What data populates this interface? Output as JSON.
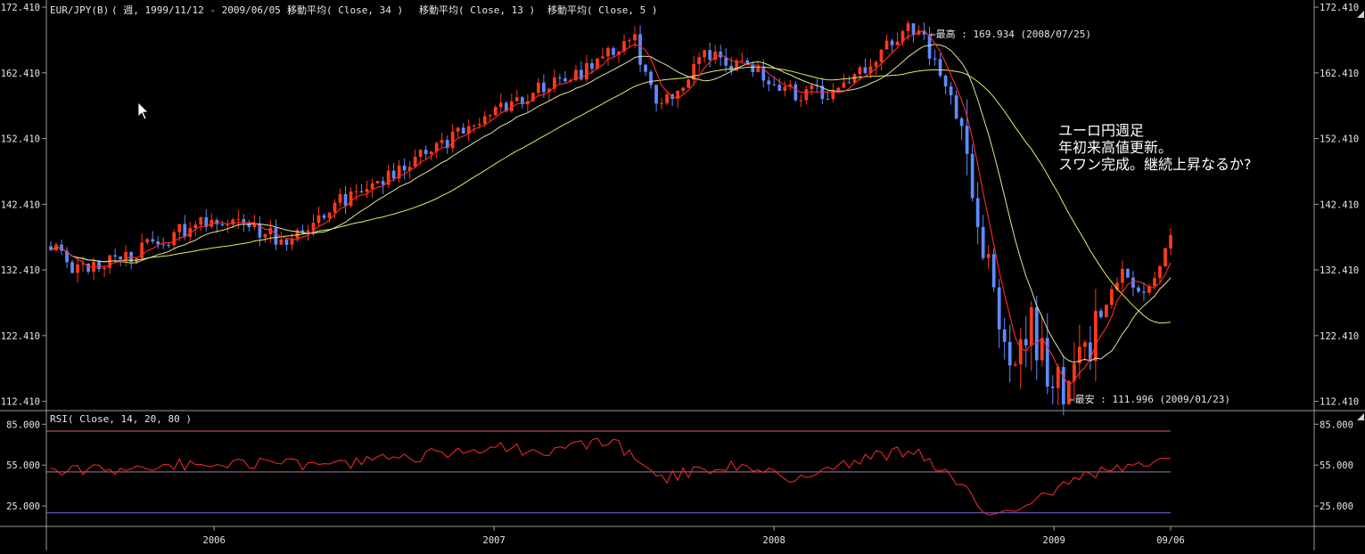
{
  "header": {
    "symbol": "EUR/JPY(B)",
    "range": "( 週, 1999/11/12 - 2009/06/05 )",
    "ma34": "移動平均( Close, 34 )",
    "ma13": "移動平均( Close, 13 )",
    "ma5": "移動平均( Close, 5 )"
  },
  "rsi_header": "RSI( Close, 14, 20, 80 )",
  "annotation": {
    "line1": "ユーロ円週足",
    "line2": "年初来高値更新。",
    "line3": "スワン完成。継続上昇なるか?"
  },
  "high_label": "←最高 : 169.934 (2008/07/25)",
  "low_label": "←最安 : 111.996 (2009/01/23)",
  "colors": {
    "up": "#ff3a1a",
    "down": "#5c8cff",
    "ma5": "#ff2a2a",
    "ma13": "#dfe3a0",
    "ma34": "#eaea60",
    "rsi": "#ff2a2a",
    "rsi_upper": "#e06060",
    "rsi_mid": "#9a7aa8",
    "rsi_lower": "#6a6ae0",
    "axis": "#9a9a9a"
  },
  "chart_data": [
    {
      "type": "candlestick",
      "title": "EUR/JPY(B)( 週, 1999/11/12 - 2009/06/05 )",
      "y_ticks": [
        "172.410",
        "162.410",
        "152.410",
        "142.410",
        "132.410",
        "122.410",
        "112.410"
      ],
      "ylim": [
        111.0,
        173.5
      ],
      "x_ticks": [
        "2006",
        "2007",
        "2008",
        "2009",
        "09/06"
      ],
      "x_range": [
        "2005/06",
        "2009/06"
      ],
      "high": {
        "value": 169.934,
        "date": "2008/07/25"
      },
      "low": {
        "value": 111.996,
        "date": "2009/01/23"
      },
      "close_waypoints": [
        [
          "2005/06",
          136.0
        ],
        [
          "2005/07",
          132.0
        ],
        [
          "2005/09",
          134.0
        ],
        [
          "2005/12",
          139.0
        ],
        [
          "2006/02",
          140.0
        ],
        [
          "2006/04",
          137.0
        ],
        [
          "2006/06",
          142.0
        ],
        [
          "2006/09",
          148.0
        ],
        [
          "2006/11",
          152.0
        ],
        [
          "2007/01",
          157.0
        ],
        [
          "2007/03",
          160.0
        ],
        [
          "2007/05",
          163.0
        ],
        [
          "2007/07",
          168.0
        ],
        [
          "2007/08",
          156.0
        ],
        [
          "2007/10",
          165.0
        ],
        [
          "2007/12",
          163.0
        ],
        [
          "2008/02",
          159.0
        ],
        [
          "2008/04",
          160.0
        ],
        [
          "2008/05",
          164.0
        ],
        [
          "2008/07",
          169.5
        ],
        [
          "2008/08",
          164.0
        ],
        [
          "2008/09",
          155.0
        ],
        [
          "2008/10",
          136.0
        ],
        [
          "2008/11",
          118.0
        ],
        [
          "2008/12",
          124.0
        ],
        [
          "2009/01",
          113.5
        ],
        [
          "2009/02",
          117.0
        ],
        [
          "2009/03",
          126.0
        ],
        [
          "2009/04",
          132.0
        ],
        [
          "2009/05",
          129.0
        ],
        [
          "2009/06",
          137.0
        ]
      ],
      "series": [
        {
          "name": "移動平均( Close, 34 )"
        },
        {
          "name": "移動平均( Close, 13 )"
        },
        {
          "name": "移動平均( Close, 5 )"
        }
      ]
    },
    {
      "type": "line",
      "title": "RSI( Close, 14, 20, 80 )",
      "y_ticks": [
        "85.000",
        "55.000",
        "25.000"
      ],
      "ylim": [
        10,
        95
      ],
      "levels": [
        80,
        50,
        20
      ],
      "rsi_waypoints": [
        [
          "2005/06",
          50
        ],
        [
          "2005/09",
          52
        ],
        [
          "2006/01",
          57
        ],
        [
          "2006/06",
          55
        ],
        [
          "2006/11",
          64
        ],
        [
          "2007/01",
          70
        ],
        [
          "2007/03",
          62
        ],
        [
          "2007/06",
          74
        ],
        [
          "2007/08",
          45
        ],
        [
          "2007/11",
          55
        ],
        [
          "2008/02",
          45
        ],
        [
          "2008/05",
          60
        ],
        [
          "2008/07",
          67
        ],
        [
          "2008/09",
          40
        ],
        [
          "2008/10",
          22
        ],
        [
          "2008/12",
          26
        ],
        [
          "2009/01",
          38
        ],
        [
          "2009/03",
          50
        ],
        [
          "2009/05",
          55
        ],
        [
          "2009/06",
          58
        ]
      ]
    }
  ]
}
